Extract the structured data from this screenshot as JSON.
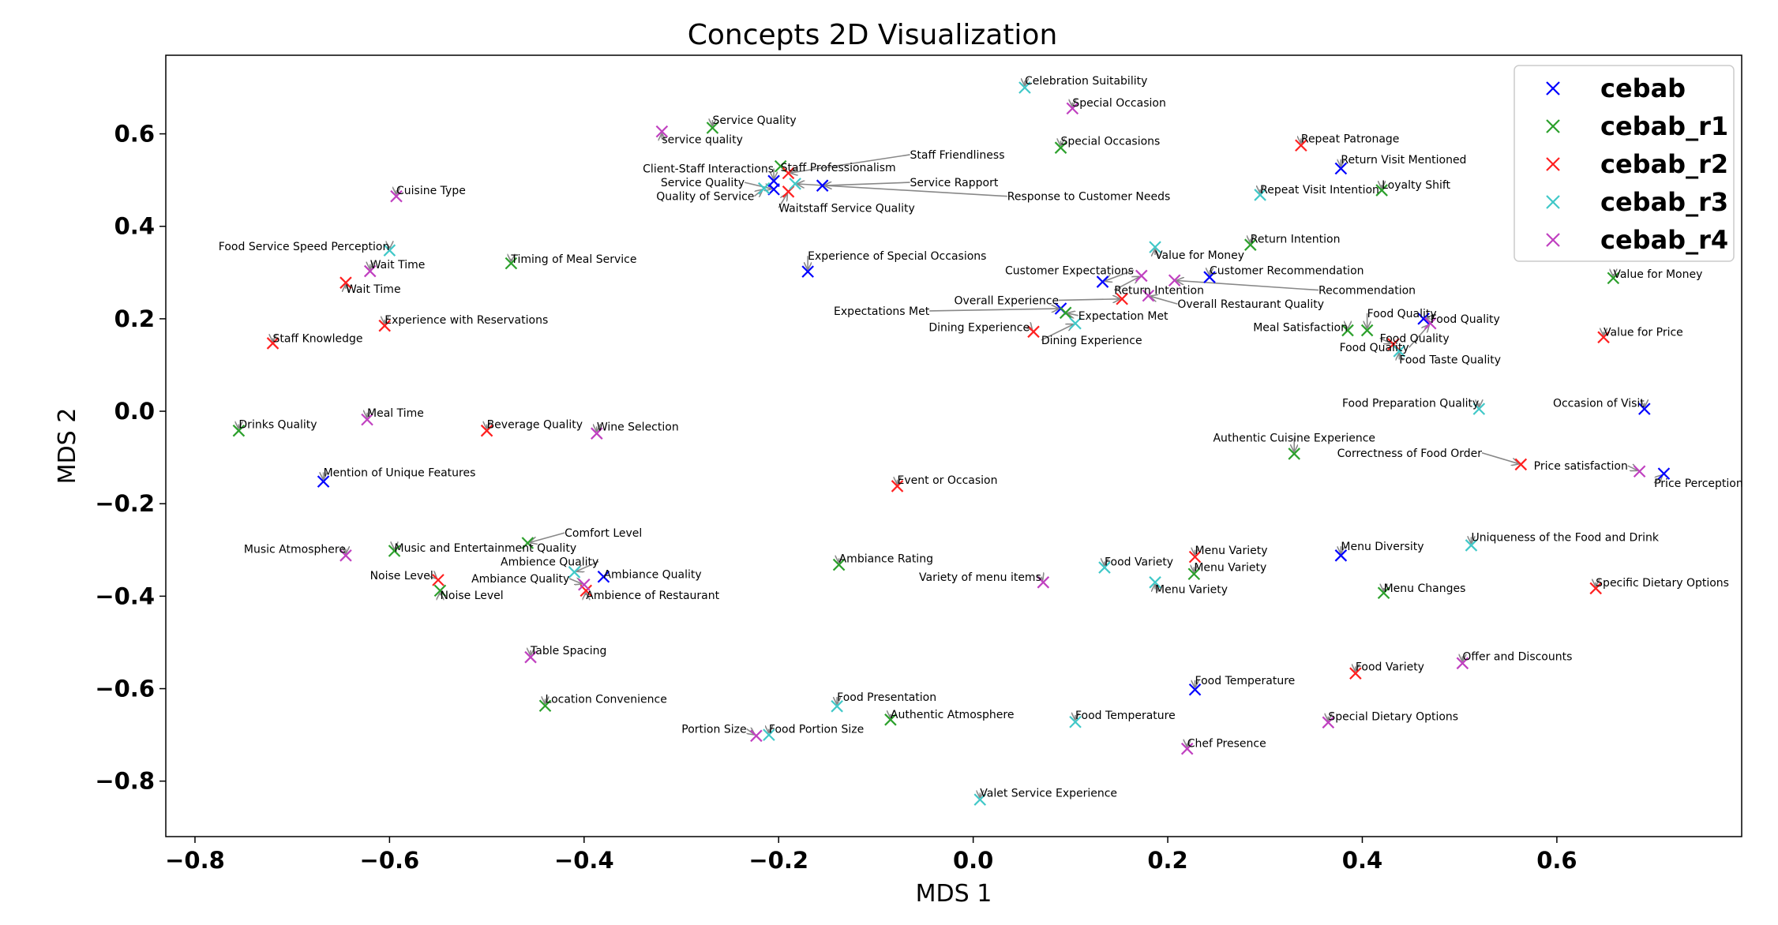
{
  "chart_data": {
    "type": "scatter",
    "title": "Concepts 2D Visualization",
    "xlabel": "MDS 1",
    "ylabel": "MDS 2",
    "xlim": [
      -0.83,
      0.79
    ],
    "ylim": [
      -0.92,
      0.77
    ],
    "xticks": [
      -0.8,
      -0.6,
      -0.4,
      -0.2,
      0.0,
      0.2,
      0.4,
      0.6
    ],
    "yticks": [
      0.6,
      0.4,
      0.2,
      0.0,
      -0.2,
      -0.4,
      -0.6,
      -0.8
    ],
    "xtick_labels": [
      "−0.8",
      "−0.6",
      "−0.4",
      "−0.2",
      "0.0",
      "0.2",
      "0.4",
      "0.6"
    ],
    "ytick_labels": [
      "0.6",
      "0.4",
      "0.2",
      "0.0",
      "−0.2",
      "−0.4",
      "−0.6",
      "−0.8"
    ],
    "legend_position": "top-right",
    "colors": {
      "cebab": "#0000ff",
      "cebab_r1": "#2ca02c",
      "cebab_r2": "#ff2020",
      "cebab_r3": "#40c8c8",
      "cebab_r4": "#c040c0",
      "arrow": "#888888"
    },
    "legend": [
      "cebab",
      "cebab_r1",
      "cebab_r2",
      "cebab_r3",
      "cebab_r4"
    ],
    "points": [
      {
        "s": "cebab",
        "x": -0.205,
        "y": 0.498,
        "label": "Client-Staff Interactions",
        "lx": -0.205,
        "ly": 0.525,
        "ha": "end"
      },
      {
        "s": "cebab",
        "x": -0.205,
        "y": 0.48,
        "label": "Service Quality",
        "lx": -0.235,
        "ly": 0.495,
        "ha": "end"
      },
      {
        "s": "cebab",
        "x": -0.155,
        "y": 0.488,
        "label": "Service Rapport",
        "lx": -0.065,
        "ly": 0.495,
        "ha": "start"
      },
      {
        "s": "cebab",
        "x": -0.17,
        "y": 0.302,
        "label": "Experience of Special Occasions",
        "lx": -0.17,
        "ly": 0.336,
        "ha": "start"
      },
      {
        "s": "cebab",
        "x": 0.378,
        "y": 0.525,
        "label": "Return Visit Mentioned",
        "lx": 0.378,
        "ly": 0.545,
        "ha": "start"
      },
      {
        "s": "cebab",
        "x": 0.243,
        "y": 0.29,
        "label": "Customer Recommendation",
        "lx": 0.243,
        "ly": 0.305,
        "ha": "start"
      },
      {
        "s": "cebab",
        "x": 0.133,
        "y": 0.28,
        "label": "Customer Expectations",
        "lx": 0.165,
        "ly": 0.305,
        "ha": "end"
      },
      {
        "s": "cebab",
        "x": 0.09,
        "y": 0.222,
        "label": "Expectations Met",
        "lx": -0.045,
        "ly": 0.217,
        "ha": "end"
      },
      {
        "s": "cebab",
        "x": 0.463,
        "y": 0.2,
        "label": "Food Quality",
        "lx": 0.47,
        "ly": 0.2,
        "ha": "start"
      },
      {
        "s": "cebab",
        "x": 0.69,
        "y": 0.005,
        "label": "Occasion of Visit",
        "lx": 0.69,
        "ly": 0.018,
        "ha": "end"
      },
      {
        "s": "cebab",
        "x": 0.71,
        "y": -0.135,
        "label": "Price Perception",
        "lx": 0.7,
        "ly": -0.155,
        "ha": "start"
      },
      {
        "s": "cebab",
        "x": -0.668,
        "y": -0.152,
        "label": "Mention of Unique Features",
        "lx": -0.668,
        "ly": -0.132,
        "ha": "start"
      },
      {
        "s": "cebab",
        "x": -0.38,
        "y": -0.358,
        "label": "Ambiance Quality",
        "lx": -0.38,
        "ly": -0.352,
        "ha": "start"
      },
      {
        "s": "cebab",
        "x": 0.378,
        "y": -0.312,
        "label": "Menu Diversity",
        "lx": 0.378,
        "ly": -0.292,
        "ha": "start"
      },
      {
        "s": "cebab",
        "x": 0.228,
        "y": -0.602,
        "label": "Food Temperature",
        "lx": 0.228,
        "ly": -0.582,
        "ha": "start"
      },
      {
        "s": "cebab_r1",
        "x": -0.268,
        "y": 0.613,
        "label": "Service Quality",
        "lx": -0.268,
        "ly": 0.63,
        "ha": "start"
      },
      {
        "s": "cebab_r1",
        "x": -0.198,
        "y": 0.53,
        "label": "Staff Professionalism",
        "lx": -0.198,
        "ly": 0.528,
        "ha": "start"
      },
      {
        "s": "cebab_r1",
        "x": 0.09,
        "y": 0.57,
        "label": "Special Occasions",
        "lx": 0.09,
        "ly": 0.585,
        "ha": "start"
      },
      {
        "s": "cebab_r1",
        "x": 0.42,
        "y": 0.478,
        "label": "Loyalty Shift",
        "lx": 0.42,
        "ly": 0.49,
        "ha": "start"
      },
      {
        "s": "cebab_r1",
        "x": -0.475,
        "y": 0.32,
        "label": "Timing of Meal Service",
        "lx": -0.475,
        "ly": 0.33,
        "ha": "start"
      },
      {
        "s": "cebab_r1",
        "x": 0.285,
        "y": 0.36,
        "label": "Return Intention",
        "lx": 0.285,
        "ly": 0.373,
        "ha": "start"
      },
      {
        "s": "cebab_r1",
        "x": 0.658,
        "y": 0.288,
        "label": "Value for Money",
        "lx": 0.658,
        "ly": 0.297,
        "ha": "start"
      },
      {
        "s": "cebab_r1",
        "x": 0.095,
        "y": 0.213,
        "label": "Expectation Met",
        "lx": 0.108,
        "ly": 0.207,
        "ha": "start"
      },
      {
        "s": "cebab_r1",
        "x": 0.385,
        "y": 0.175,
        "label": "Meal Satisfaction",
        "lx": 0.385,
        "ly": 0.182,
        "ha": "end"
      },
      {
        "s": "cebab_r1",
        "x": 0.405,
        "y": 0.175,
        "label": "Food Quality",
        "lx": 0.405,
        "ly": 0.212,
        "ha": "start"
      },
      {
        "s": "cebab_r1",
        "x": -0.755,
        "y": -0.042,
        "label": "Drinks Quality",
        "lx": -0.755,
        "ly": -0.028,
        "ha": "start"
      },
      {
        "s": "cebab_r1",
        "x": 0.33,
        "y": -0.092,
        "label": "Authentic Cuisine Experience",
        "lx": 0.33,
        "ly": -0.057,
        "ha": "middle"
      },
      {
        "s": "cebab_r1",
        "x": -0.458,
        "y": -0.285,
        "label": "Comfort Level",
        "lx": -0.42,
        "ly": -0.263,
        "ha": "start"
      },
      {
        "s": "cebab_r1",
        "x": -0.595,
        "y": -0.302,
        "label": "Music and Entertainment Quality",
        "lx": -0.595,
        "ly": -0.295,
        "ha": "start"
      },
      {
        "s": "cebab_r1",
        "x": -0.548,
        "y": -0.388,
        "label": "Noise Level",
        "lx": -0.548,
        "ly": -0.398,
        "ha": "start"
      },
      {
        "s": "cebab_r1",
        "x": -0.138,
        "y": -0.332,
        "label": "Ambiance Rating",
        "lx": -0.138,
        "ly": -0.318,
        "ha": "start"
      },
      {
        "s": "cebab_r1",
        "x": 0.227,
        "y": -0.352,
        "label": "Menu Variety",
        "lx": 0.227,
        "ly": -0.337,
        "ha": "start"
      },
      {
        "s": "cebab_r1",
        "x": 0.422,
        "y": -0.393,
        "label": "Menu Changes",
        "lx": 0.422,
        "ly": -0.382,
        "ha": "start"
      },
      {
        "s": "cebab_r1",
        "x": -0.44,
        "y": -0.637,
        "label": "Location Convenience",
        "lx": -0.44,
        "ly": -0.622,
        "ha": "start"
      },
      {
        "s": "cebab_r1",
        "x": -0.085,
        "y": -0.667,
        "label": "Authentic Atmosphere",
        "lx": -0.085,
        "ly": -0.655,
        "ha": "start"
      },
      {
        "s": "cebab_r2",
        "x": -0.19,
        "y": 0.515,
        "label": "Staff Friendliness",
        "lx": -0.065,
        "ly": 0.555,
        "ha": "start"
      },
      {
        "s": "cebab_r2",
        "x": -0.19,
        "y": 0.475,
        "label": "Waitstaff Service Quality",
        "lx": -0.2,
        "ly": 0.44,
        "ha": "start"
      },
      {
        "s": "cebab_r2",
        "x": 0.337,
        "y": 0.575,
        "label": "Repeat Patronage",
        "lx": 0.337,
        "ly": 0.59,
        "ha": "start"
      },
      {
        "s": "cebab_r2",
        "x": -0.645,
        "y": 0.278,
        "label": "Wait Time",
        "lx": -0.645,
        "ly": 0.265,
        "ha": "start"
      },
      {
        "s": "cebab_r2",
        "x": 0.153,
        "y": 0.243,
        "label": "Overall Experience",
        "lx": 0.088,
        "ly": 0.24,
        "ha": "end"
      },
      {
        "s": "cebab_r2",
        "x": -0.605,
        "y": 0.185,
        "label": "Experience with Reservations",
        "lx": -0.605,
        "ly": 0.198,
        "ha": "start"
      },
      {
        "s": "cebab_r2",
        "x": -0.72,
        "y": 0.147,
        "label": "Staff Knowledge",
        "lx": -0.72,
        "ly": 0.158,
        "ha": "start"
      },
      {
        "s": "cebab_r2",
        "x": 0.062,
        "y": 0.172,
        "label": "Dining Experience",
        "lx": 0.058,
        "ly": 0.182,
        "ha": "end"
      },
      {
        "s": "cebab_r2",
        "x": 0.648,
        "y": 0.16,
        "label": "Value for Price",
        "lx": 0.648,
        "ly": 0.172,
        "ha": "start"
      },
      {
        "s": "cebab_r2",
        "x": 0.432,
        "y": 0.145,
        "label": "Food Quality",
        "lx": 0.418,
        "ly": 0.158,
        "ha": "start"
      },
      {
        "s": "cebab_r2",
        "x": -0.5,
        "y": -0.042,
        "label": "Beverage Quality",
        "lx": -0.5,
        "ly": -0.028,
        "ha": "start"
      },
      {
        "s": "cebab_r2",
        "x": 0.563,
        "y": -0.115,
        "label": "Correctness of Food Order",
        "lx": 0.523,
        "ly": -0.09,
        "ha": "end"
      },
      {
        "s": "cebab_r2",
        "x": -0.078,
        "y": -0.162,
        "label": "Event or Occasion",
        "lx": -0.078,
        "ly": -0.148,
        "ha": "start"
      },
      {
        "s": "cebab_r2",
        "x": -0.55,
        "y": -0.365,
        "label": "Noise Level",
        "lx": -0.555,
        "ly": -0.355,
        "ha": "end"
      },
      {
        "s": "cebab_r2",
        "x": -0.398,
        "y": -0.388,
        "label": "Ambience of Restaurant",
        "lx": -0.398,
        "ly": -0.398,
        "ha": "start"
      },
      {
        "s": "cebab_r2",
        "x": 0.228,
        "y": -0.315,
        "label": "Menu Variety",
        "lx": 0.228,
        "ly": -0.3,
        "ha": "start"
      },
      {
        "s": "cebab_r2",
        "x": 0.64,
        "y": -0.383,
        "label": "Specific Dietary Options",
        "lx": 0.64,
        "ly": -0.37,
        "ha": "start"
      },
      {
        "s": "cebab_r2",
        "x": 0.393,
        "y": -0.567,
        "label": "Food Variety",
        "lx": 0.393,
        "ly": -0.552,
        "ha": "start"
      },
      {
        "s": "cebab_r3",
        "x": 0.053,
        "y": 0.7,
        "label": "Celebration Suitability",
        "lx": 0.053,
        "ly": 0.715,
        "ha": "start"
      },
      {
        "s": "cebab_r3",
        "x": -0.215,
        "y": 0.482,
        "label": "Quality of Service",
        "lx": -0.225,
        "ly": 0.465,
        "ha": "end"
      },
      {
        "s": "cebab_r3",
        "x": -0.183,
        "y": 0.492,
        "label": "Response to Customer Needs",
        "lx": 0.035,
        "ly": 0.465,
        "ha": "start"
      },
      {
        "s": "cebab_r3",
        "x": 0.295,
        "y": 0.468,
        "label": "Repeat Visit Intention",
        "lx": 0.295,
        "ly": 0.48,
        "ha": "start"
      },
      {
        "s": "cebab_r3",
        "x": -0.6,
        "y": 0.348,
        "label": "Food Service Speed Perception",
        "lx": -0.6,
        "ly": 0.357,
        "ha": "end"
      },
      {
        "s": "cebab_r3",
        "x": 0.187,
        "y": 0.355,
        "label": "Value for Money",
        "lx": 0.187,
        "ly": 0.338,
        "ha": "start"
      },
      {
        "s": "cebab_r3",
        "x": 0.105,
        "y": 0.19,
        "label": "Dining Experience",
        "lx": 0.07,
        "ly": 0.154,
        "ha": "start"
      },
      {
        "s": "cebab_r3",
        "x": 0.438,
        "y": 0.13,
        "label": "Food Taste Quality",
        "lx": 0.438,
        "ly": 0.112,
        "ha": "start"
      },
      {
        "s": "cebab_r3",
        "x": 0.52,
        "y": 0.005,
        "label": "Food Preparation Quality",
        "lx": 0.52,
        "ly": 0.018,
        "ha": "end"
      },
      {
        "s": "cebab_r3",
        "x": 0.512,
        "y": -0.29,
        "label": "Uniqueness of the Food and Drink",
        "lx": 0.512,
        "ly": -0.272,
        "ha": "start"
      },
      {
        "s": "cebab_r3",
        "x": 0.135,
        "y": -0.338,
        "label": "Food Variety",
        "lx": 0.135,
        "ly": -0.325,
        "ha": "start"
      },
      {
        "s": "cebab_r3",
        "x": 0.187,
        "y": -0.37,
        "label": "Menu Variety",
        "lx": 0.187,
        "ly": -0.385,
        "ha": "start"
      },
      {
        "s": "cebab_r3",
        "x": -0.41,
        "y": -0.348,
        "label": "Ambience Quality",
        "lx": -0.385,
        "ly": -0.325,
        "ha": "end"
      },
      {
        "s": "cebab_r3",
        "x": -0.14,
        "y": -0.638,
        "label": "Food Presentation",
        "lx": -0.14,
        "ly": -0.618,
        "ha": "start"
      },
      {
        "s": "cebab_r3",
        "x": -0.21,
        "y": -0.7,
        "label": "Food Portion Size",
        "lx": -0.21,
        "ly": -0.687,
        "ha": "start"
      },
      {
        "s": "cebab_r3",
        "x": 0.105,
        "y": -0.672,
        "label": "Food Temperature",
        "lx": 0.105,
        "ly": -0.657,
        "ha": "start"
      },
      {
        "s": "cebab_r3",
        "x": 0.007,
        "y": -0.84,
        "label": "Valet Service Experience",
        "lx": 0.007,
        "ly": -0.825,
        "ha": "start"
      },
      {
        "s": "cebab_r4",
        "x": 0.102,
        "y": 0.655,
        "label": "Special Occasion",
        "lx": 0.102,
        "ly": 0.668,
        "ha": "start"
      },
      {
        "s": "cebab_r4",
        "x": -0.32,
        "y": 0.605,
        "label": "service quality",
        "lx": -0.32,
        "ly": 0.588,
        "ha": "start"
      },
      {
        "s": "cebab_r4",
        "x": -0.593,
        "y": 0.465,
        "label": "Cuisine Type",
        "lx": -0.593,
        "ly": 0.478,
        "ha": "start"
      },
      {
        "s": "cebab_r4",
        "x": -0.62,
        "y": 0.303,
        "label": "Wait Time",
        "lx": -0.62,
        "ly": 0.318,
        "ha": "start"
      },
      {
        "s": "cebab_r4",
        "x": 0.173,
        "y": 0.293,
        "label": "Return Intention",
        "lx": 0.145,
        "ly": 0.262,
        "ha": "start"
      },
      {
        "s": "cebab_r4",
        "x": 0.207,
        "y": 0.283,
        "label": "Recommendation",
        "lx": 0.355,
        "ly": 0.262,
        "ha": "start"
      },
      {
        "s": "cebab_r4",
        "x": 0.18,
        "y": 0.25,
        "label": "Overall Restaurant Quality",
        "lx": 0.21,
        "ly": 0.232,
        "ha": "start"
      },
      {
        "s": "cebab_r4",
        "x": 0.47,
        "y": 0.19,
        "label": "Food Quality",
        "lx": 0.448,
        "ly": 0.138,
        "ha": "end"
      },
      {
        "s": "cebab_r4",
        "x": -0.623,
        "y": -0.018,
        "label": "Meal Time",
        "lx": -0.623,
        "ly": -0.003,
        "ha": "start"
      },
      {
        "s": "cebab_r4",
        "x": -0.387,
        "y": -0.048,
        "label": "Wine Selection",
        "lx": -0.387,
        "ly": -0.033,
        "ha": "start"
      },
      {
        "s": "cebab_r4",
        "x": 0.685,
        "y": -0.13,
        "label": "Price satisfaction",
        "lx": 0.673,
        "ly": -0.118,
        "ha": "end"
      },
      {
        "s": "cebab_r4",
        "x": -0.645,
        "y": -0.312,
        "label": "Music Atmosphere",
        "lx": -0.645,
        "ly": -0.298,
        "ha": "end"
      },
      {
        "s": "cebab_r4",
        "x": -0.4,
        "y": -0.375,
        "label": "Ambiance Quality",
        "lx": -0.415,
        "ly": -0.362,
        "ha": "end"
      },
      {
        "s": "cebab_r4",
        "x": 0.072,
        "y": -0.37,
        "label": "Variety of menu items",
        "lx": 0.07,
        "ly": -0.358,
        "ha": "end"
      },
      {
        "s": "cebab_r4",
        "x": -0.455,
        "y": -0.532,
        "label": "Table Spacing",
        "lx": -0.455,
        "ly": -0.517,
        "ha": "start"
      },
      {
        "s": "cebab_r4",
        "x": 0.503,
        "y": -0.545,
        "label": "Offer and Discounts",
        "lx": 0.503,
        "ly": -0.53,
        "ha": "start"
      },
      {
        "s": "cebab_r4",
        "x": -0.223,
        "y": -0.702,
        "label": "Portion Size",
        "lx": -0.233,
        "ly": -0.687,
        "ha": "end"
      },
      {
        "s": "cebab_r4",
        "x": 0.365,
        "y": -0.673,
        "label": "Special Dietary Options",
        "lx": 0.365,
        "ly": -0.66,
        "ha": "start"
      },
      {
        "s": "cebab_r4",
        "x": 0.22,
        "y": -0.73,
        "label": "Chef Presence",
        "lx": 0.22,
        "ly": -0.718,
        "ha": "start"
      }
    ]
  }
}
